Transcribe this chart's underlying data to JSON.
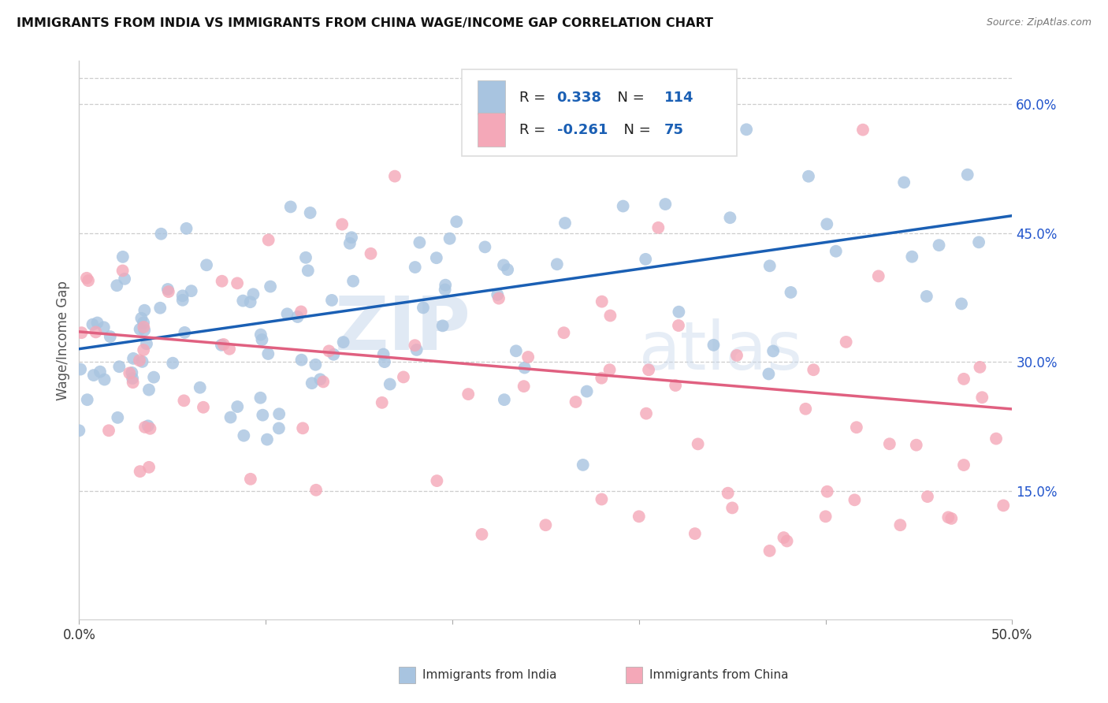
{
  "title": "IMMIGRANTS FROM INDIA VS IMMIGRANTS FROM CHINA WAGE/INCOME GAP CORRELATION CHART",
  "source": "Source: ZipAtlas.com",
  "ylabel": "Wage/Income Gap",
  "x_min": 0.0,
  "x_max": 0.5,
  "y_min": 0.0,
  "y_max": 0.65,
  "india_R": 0.338,
  "india_N": 114,
  "china_R": -0.261,
  "china_N": 75,
  "india_color": "#a8c4e0",
  "china_color": "#f4a8b8",
  "india_line_color": "#1a5fb4",
  "china_line_color": "#e06080",
  "watermark_zip": "ZIP",
  "watermark_atlas": "atlas",
  "india_line_x0": 0.0,
  "india_line_y0": 0.315,
  "india_line_x1": 0.5,
  "india_line_y1": 0.47,
  "china_line_x0": 0.0,
  "china_line_y0": 0.335,
  "china_line_x1": 0.5,
  "china_line_y1": 0.245
}
